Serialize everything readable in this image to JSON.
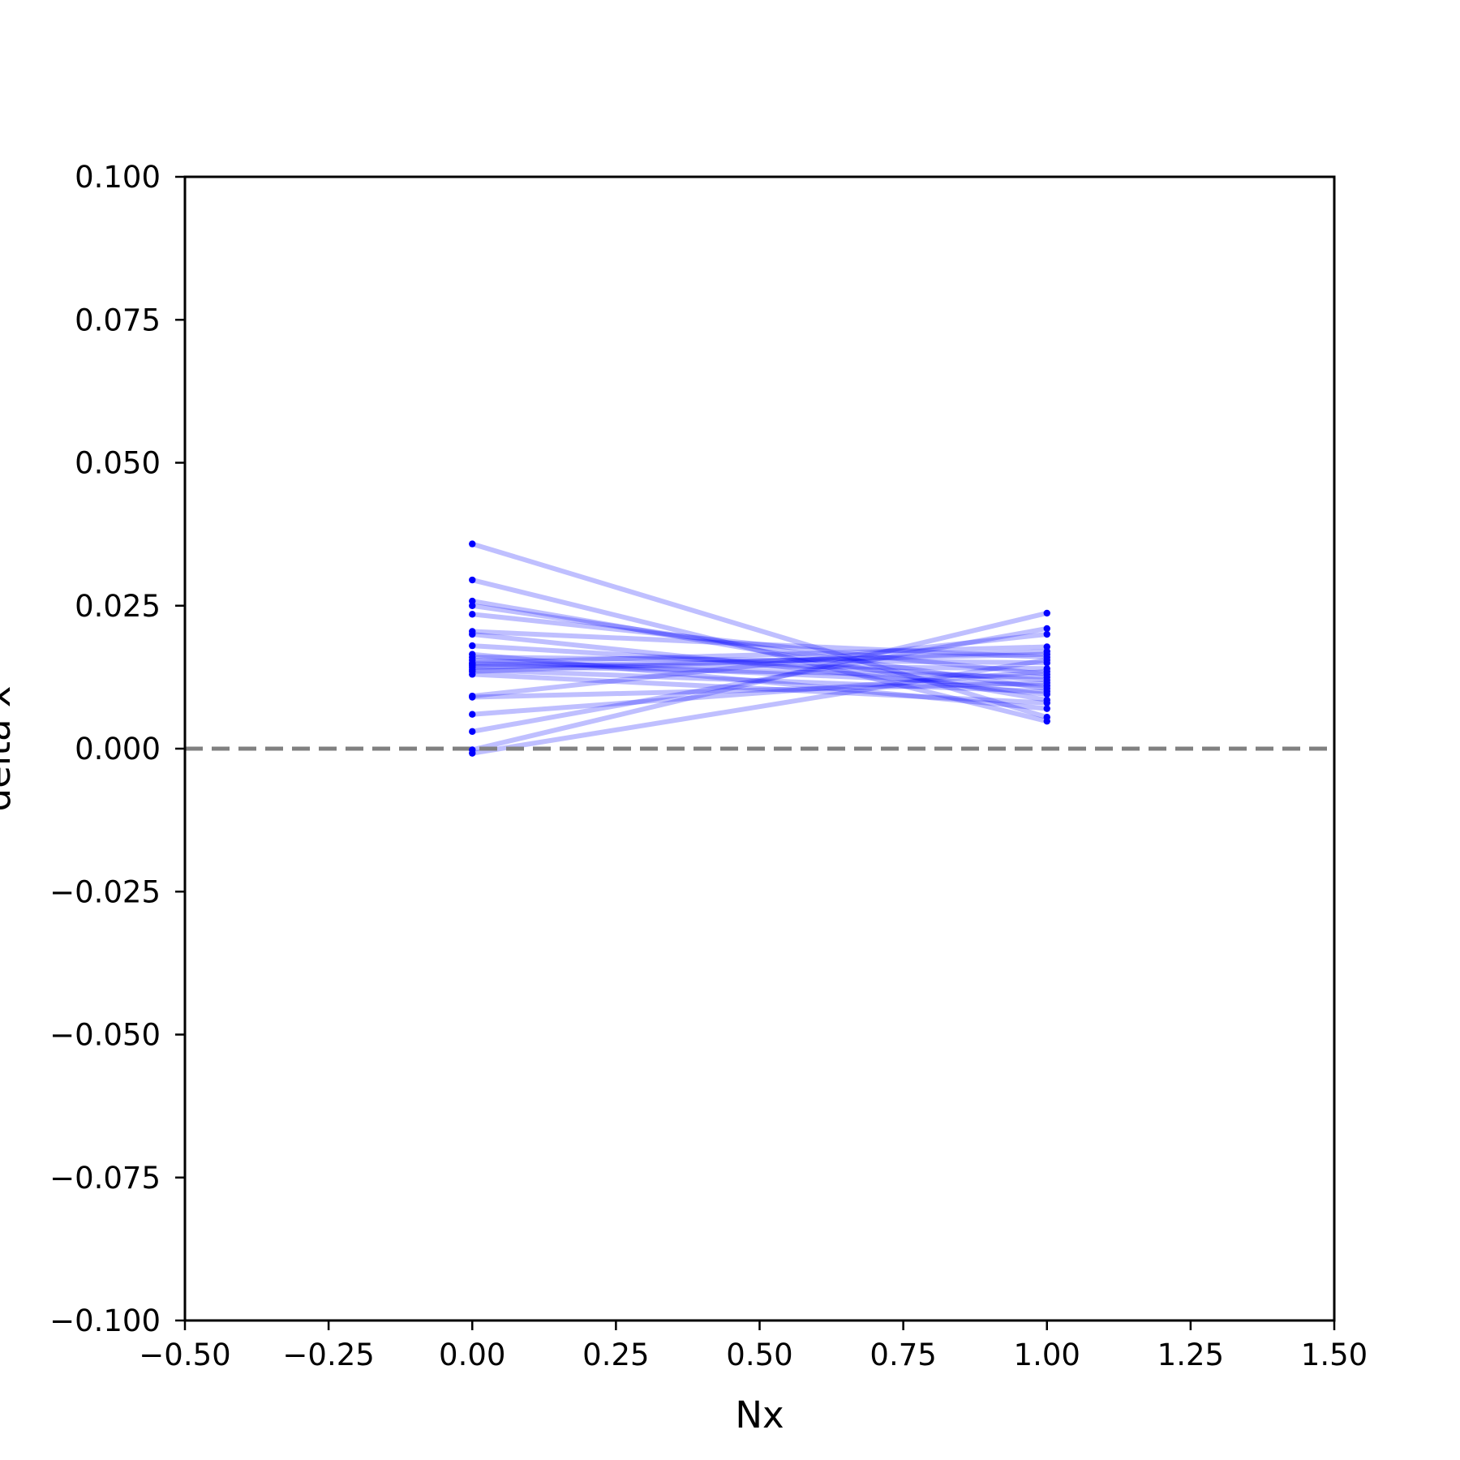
{
  "chart_data": {
    "type": "line",
    "title": "",
    "xlabel": "Nx",
    "ylabel": "delta x",
    "xlim": [
      -0.5,
      1.5
    ],
    "ylim": [
      -0.1,
      0.1
    ],
    "xticks": [
      "−0.50",
      "−0.25",
      "0.00",
      "0.25",
      "0.50",
      "0.75",
      "1.00",
      "1.25",
      "1.50"
    ],
    "xtick_values": [
      -0.5,
      -0.25,
      0.0,
      0.25,
      0.5,
      0.75,
      1.0,
      1.25,
      1.5
    ],
    "yticks": [
      "−0.100",
      "−0.075",
      "−0.050",
      "−0.025",
      "0.000",
      "0.025",
      "0.050",
      "0.075",
      "0.100"
    ],
    "ytick_values": [
      -0.1,
      -0.075,
      -0.05,
      -0.025,
      0.0,
      0.025,
      0.05,
      0.075,
      0.1
    ],
    "grid": false,
    "legend": false,
    "line_color": "#0000ff",
    "line_alpha": 0.25,
    "reference_line": {
      "y": 0.0,
      "style": "dashed",
      "color": "#808080"
    },
    "x": [
      0,
      1
    ],
    "series": [
      {
        "values": [
          0.0358,
          0.0055
        ]
      },
      {
        "values": [
          0.0295,
          0.0048
        ]
      },
      {
        "values": [
          0.0258,
          0.0085
        ]
      },
      {
        "values": [
          0.025,
          0.0105
        ]
      },
      {
        "values": [
          0.0235,
          0.013
        ]
      },
      {
        "values": [
          0.0205,
          0.016
        ]
      },
      {
        "values": [
          0.02,
          0.0095
        ]
      },
      {
        "values": [
          0.018,
          0.012
        ]
      },
      {
        "values": [
          0.0165,
          0.007
        ]
      },
      {
        "values": [
          0.016,
          0.015
        ]
      },
      {
        "values": [
          0.0155,
          0.011
        ]
      },
      {
        "values": [
          0.015,
          0.0178
        ]
      },
      {
        "values": [
          0.0148,
          0.014
        ]
      },
      {
        "values": [
          0.0145,
          0.0125
        ]
      },
      {
        "values": [
          0.0142,
          0.0165
        ]
      },
      {
        "values": [
          0.0138,
          0.01
        ]
      },
      {
        "values": [
          0.0135,
          0.017
        ]
      },
      {
        "values": [
          0.013,
          0.008
        ]
      },
      {
        "values": [
          0.0092,
          0.02
        ]
      },
      {
        "values": [
          0.009,
          0.0115
        ]
      },
      {
        "values": [
          0.006,
          0.0135
        ]
      },
      {
        "values": [
          0.003,
          0.021
        ]
      },
      {
        "values": [
          -0.0002,
          0.0237
        ]
      },
      {
        "values": [
          -0.0008,
          0.0155
        ]
      }
    ]
  }
}
